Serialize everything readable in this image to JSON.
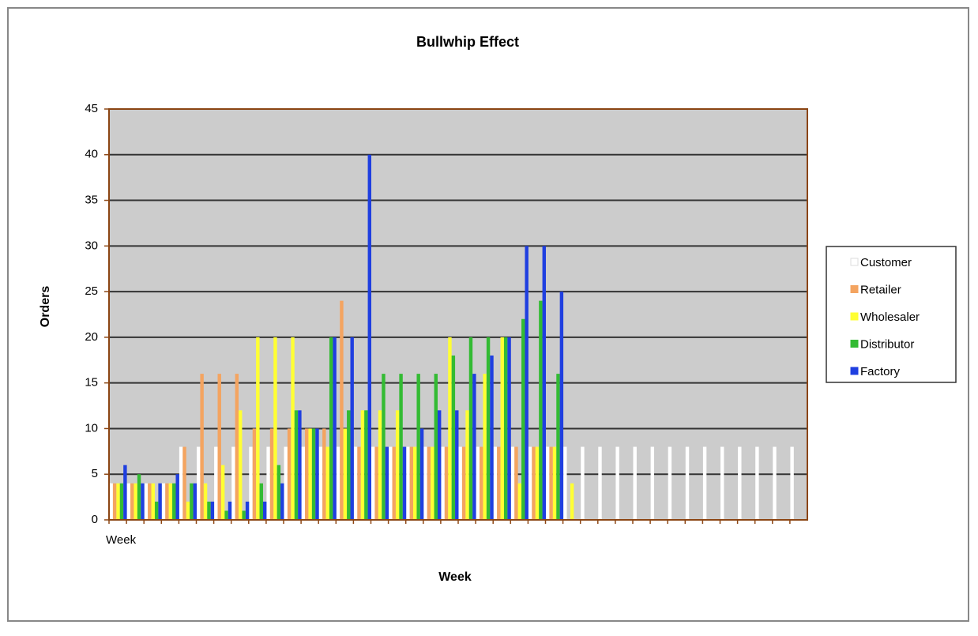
{
  "chart_data": {
    "type": "bar",
    "title": "Bullwhip Effect",
    "x_label": "Week",
    "y_label": "Orders",
    "categories": [
      "Week",
      null,
      null,
      null,
      null,
      null,
      null,
      null,
      null,
      null,
      null,
      null,
      null,
      null,
      null,
      null,
      null,
      null,
      null,
      null,
      null,
      null,
      null,
      null,
      null,
      null,
      null,
      null,
      null,
      null,
      null,
      null,
      null,
      null,
      null,
      null,
      null,
      null,
      null,
      null
    ],
    "series": [
      {
        "name": "Customer",
        "color": "#ffffff",
        "values": [
          4,
          4,
          4,
          4,
          8,
          8,
          8,
          8,
          8,
          8,
          8,
          8,
          8,
          8,
          8,
          8,
          8,
          8,
          8,
          8,
          8,
          8,
          8,
          8,
          8,
          8,
          8,
          8,
          8,
          8,
          8,
          8,
          8,
          8,
          8,
          8,
          8,
          8,
          8,
          8
        ]
      },
      {
        "name": "Retailer",
        "color": "#f4a460",
        "values": [
          4,
          4,
          4,
          4,
          8,
          16,
          16,
          16,
          10,
          10,
          10,
          10,
          10,
          24,
          8,
          8,
          8,
          8,
          8,
          8,
          8,
          8,
          8,
          8,
          8,
          8,
          null,
          null,
          null,
          null,
          null,
          null,
          null,
          null,
          null,
          null,
          null,
          null,
          null,
          null
        ]
      },
      {
        "name": "Wholesaler",
        "color": "#ffff33",
        "values": [
          4,
          4,
          4,
          4,
          2,
          4,
          6,
          12,
          20,
          20,
          20,
          10,
          8,
          10,
          12,
          12,
          12,
          8,
          8,
          20,
          12,
          16,
          20,
          4,
          8,
          8,
          4,
          null,
          null,
          null,
          null,
          null,
          null,
          null,
          null,
          null,
          null,
          null,
          null,
          null
        ]
      },
      {
        "name": "Distributor",
        "color": "#33bb33",
        "values": [
          4,
          5,
          2,
          4,
          4,
          2,
          1,
          1,
          4,
          6,
          12,
          10,
          20,
          12,
          12,
          16,
          16,
          16,
          16,
          18,
          20,
          20,
          20,
          22,
          24,
          16,
          null,
          null,
          null,
          null,
          null,
          null,
          null,
          null,
          null,
          null,
          null,
          null,
          null,
          null
        ]
      },
      {
        "name": "Factory",
        "color": "#1f3fe0",
        "values": [
          6,
          4,
          4,
          5,
          4,
          2,
          2,
          2,
          2,
          4,
          12,
          10,
          20,
          20,
          40,
          8,
          8,
          10,
          12,
          12,
          16,
          18,
          20,
          30,
          30,
          25,
          null,
          null,
          null,
          null,
          null,
          null,
          null,
          null,
          null,
          null,
          null,
          null,
          null,
          null
        ]
      }
    ],
    "ylim": [
      0,
      45
    ],
    "yticks": [
      0,
      5,
      10,
      15,
      20,
      25,
      30,
      35,
      40,
      45
    ],
    "grid": true,
    "legend": "right"
  }
}
